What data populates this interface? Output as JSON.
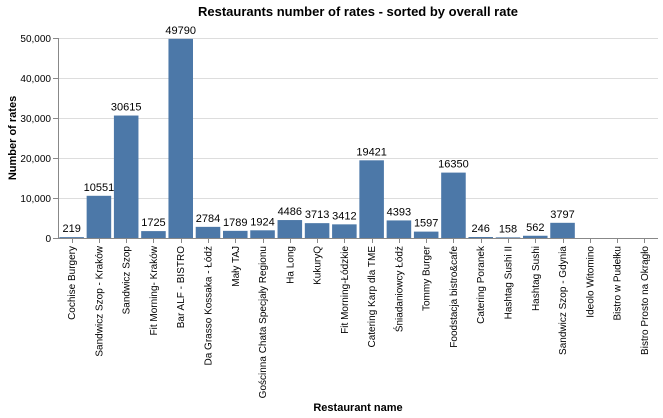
{
  "chart_data": {
    "type": "bar",
    "title": "Restaurants number of rates - sorted by overall rate",
    "xlabel": "Restaurant name",
    "ylabel": "Number of rates",
    "ylim": [
      0,
      50000
    ],
    "y_ticks": [
      0,
      10000,
      20000,
      30000,
      40000,
      50000
    ],
    "y_tick_labels": [
      "0",
      "10,000",
      "20,000",
      "30,000",
      "40,000",
      "50,000"
    ],
    "grid": true,
    "bar_color": "#4c78a8",
    "categories": [
      "Cochise Burgery",
      "Sandwicz Szop - Kraków",
      "Sandwicz Szop",
      "Fit Morning- Kraków",
      "Bar ALF - BISTRO",
      "Da Grasso Kossaka - Łódź",
      "Mały TAJ",
      "Gościnna Chata Specjały Regionu",
      "Ha Long",
      "KukuryQ",
      "Fit Morning-Łódzkie",
      "Catering Karp dla TME",
      "Śniadaniowcy Łódź",
      "Tommy Burger",
      "Foodstacja bistro&cafe",
      "Catering Poranek",
      "Hashtag Sushi II",
      "Hashtag Sushi",
      "Sandwicz Szop - Gdynia",
      "Ideolo Witomino",
      "Bistro w Pudełku",
      "Bistro Prosto na Okrągło"
    ],
    "values": [
      219,
      10551,
      30615,
      1725,
      49790,
      2784,
      1789,
      1924,
      4486,
      3713,
      3412,
      19421,
      4393,
      1597,
      16350,
      246,
      158,
      562,
      3797,
      null,
      null,
      null
    ]
  }
}
